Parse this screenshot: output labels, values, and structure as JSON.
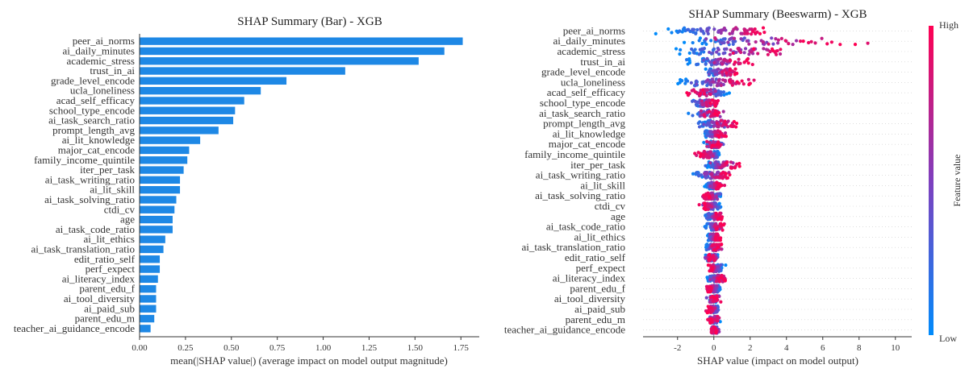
{
  "chart_data": [
    {
      "type": "bar",
      "title": "SHAP Summary (Bar) - XGB",
      "xlabel": "mean(|SHAP value|) (average impact on model output magnitude)",
      "ylabel": "",
      "xlim": [
        0,
        1.85
      ],
      "xticks": [
        0.0,
        0.25,
        0.5,
        0.75,
        1.0,
        1.25,
        1.5,
        1.75
      ],
      "xtick_labels": [
        "0.00",
        "0.25",
        "0.50",
        "0.75",
        "1.00",
        "1.25",
        "1.50",
        "1.75"
      ],
      "bar_color": "#1e88e5",
      "categories": [
        "peer_ai_norms",
        "ai_daily_minutes",
        "academic_stress",
        "trust_in_ai",
        "grade_level_encode",
        "ucla_loneliness",
        "acad_self_efficacy",
        "school_type_encode",
        "ai_task_search_ratio",
        "prompt_length_avg",
        "ai_lit_knowledge",
        "major_cat_encode",
        "family_income_quintile",
        "iter_per_task",
        "ai_task_writing_ratio",
        "ai_lit_skill",
        "ai_task_solving_ratio",
        "ctdi_cv",
        "age",
        "ai_task_code_ratio",
        "ai_lit_ethics",
        "ai_task_translation_ratio",
        "edit_ratio_self",
        "perf_expect",
        "ai_literacy_index",
        "parent_edu_f",
        "ai_tool_diversity",
        "ai_paid_sub",
        "parent_edu_m",
        "teacher_ai_guidance_encode"
      ],
      "values": [
        1.76,
        1.66,
        1.52,
        1.12,
        0.8,
        0.66,
        0.57,
        0.52,
        0.51,
        0.43,
        0.33,
        0.27,
        0.26,
        0.24,
        0.22,
        0.22,
        0.2,
        0.19,
        0.18,
        0.18,
        0.14,
        0.13,
        0.11,
        0.11,
        0.1,
        0.09,
        0.09,
        0.09,
        0.08,
        0.06
      ]
    },
    {
      "type": "scatter",
      "title": "SHAP Summary (Beeswarm) - XGB",
      "xlabel": "SHAP value (impact on model output)",
      "ylabel": "",
      "xlim": [
        -3.9,
        10.9
      ],
      "xticks": [
        -2,
        0,
        2,
        4,
        6,
        8,
        10
      ],
      "xtick_labels": [
        "-2",
        "0",
        "2",
        "4",
        "6",
        "8",
        "10"
      ],
      "colorbar": {
        "label": "Feature value",
        "high_label": "High",
        "low_label": "Low",
        "high_color": "#ff0052",
        "low_color": "#008bfb"
      },
      "features": [
        {
          "name": "peer_ai_norms",
          "low_range": [
            -3.2,
            -1.6
          ],
          "high_range": [
            2.2,
            3.4
          ],
          "spread": 0.1
        },
        {
          "name": "ai_daily_minutes",
          "low_range": [
            -1.8,
            -0.5
          ],
          "high_range": [
            0.5,
            10.2
          ],
          "spread": 0.32
        },
        {
          "name": "academic_stress",
          "low_range": [
            -2.9,
            -0.6
          ],
          "high_range": [
            1.0,
            5.6
          ],
          "spread": 0.14
        },
        {
          "name": "trust_in_ai",
          "low_range": [
            -1.9,
            -0.3
          ],
          "high_range": [
            0.5,
            2.6
          ],
          "spread": 0.14
        },
        {
          "name": "grade_level_encode",
          "low_range": [
            -0.9,
            0.2
          ],
          "high_range": [
            0.5,
            1.6
          ],
          "spread": 0.2
        },
        {
          "name": "ucla_loneliness",
          "low_range": [
            -2.5,
            -0.6
          ],
          "high_range": [
            0.8,
            2.7
          ],
          "spread": 0.14
        },
        {
          "name": "acad_self_efficacy",
          "low_range": [
            0.0,
            1.0
          ],
          "high_range": [
            -2.0,
            -0.2
          ],
          "spread": 0.18
        },
        {
          "name": "school_type_encode",
          "low_range": [
            -1.5,
            -0.2
          ],
          "high_range": [
            -0.5,
            0.4
          ],
          "spread": 0.25
        },
        {
          "name": "ai_task_search_ratio",
          "low_range": [
            -1.5,
            0.6
          ],
          "high_range": [
            -1.0,
            0.8
          ],
          "spread": 0.25
        },
        {
          "name": "prompt_length_avg",
          "low_range": [
            -1.2,
            0.0
          ],
          "high_range": [
            0.2,
            1.6
          ],
          "spread": 0.2
        },
        {
          "name": "ai_lit_knowledge",
          "low_range": [
            -0.7,
            0.0
          ],
          "high_range": [
            0.0,
            0.9
          ],
          "spread": 0.2
        },
        {
          "name": "major_cat_encode",
          "low_range": [
            -0.7,
            0.7
          ],
          "high_range": [
            -0.5,
            0.6
          ],
          "spread": 0.25
        },
        {
          "name": "family_income_quintile",
          "low_range": [
            0.0,
            0.4
          ],
          "high_range": [
            -1.2,
            0.0
          ],
          "spread": 0.2
        },
        {
          "name": "iter_per_task",
          "low_range": [
            -0.6,
            0.0
          ],
          "high_range": [
            0.0,
            2.0
          ],
          "spread": 0.2
        },
        {
          "name": "ai_task_writing_ratio",
          "low_range": [
            -1.6,
            0.0
          ],
          "high_range": [
            0.0,
            1.2
          ],
          "spread": 0.2
        },
        {
          "name": "ai_lit_skill",
          "low_range": [
            -0.6,
            0.0
          ],
          "high_range": [
            0.0,
            0.7
          ],
          "spread": 0.2
        },
        {
          "name": "ai_task_solving_ratio",
          "low_range": [
            0.0,
            0.6
          ],
          "high_range": [
            -0.9,
            0.0
          ],
          "spread": 0.2
        },
        {
          "name": "ctdi_cv",
          "low_range": [
            -0.3,
            0.5
          ],
          "high_range": [
            -0.9,
            0.0
          ],
          "spread": 0.2
        },
        {
          "name": "age",
          "low_range": [
            -0.6,
            0.0
          ],
          "high_range": [
            0.0,
            0.6
          ],
          "spread": 0.2
        },
        {
          "name": "ai_task_code_ratio",
          "low_range": [
            -0.6,
            0.0
          ],
          "high_range": [
            0.0,
            0.7
          ],
          "spread": 0.2
        },
        {
          "name": "ai_lit_ethics",
          "low_range": [
            -0.5,
            0.0
          ],
          "high_range": [
            0.0,
            0.5
          ],
          "spread": 0.2
        },
        {
          "name": "ai_task_translation_ratio",
          "low_range": [
            -0.7,
            0.2
          ],
          "high_range": [
            -0.3,
            0.8
          ],
          "spread": 0.2
        },
        {
          "name": "edit_ratio_self",
          "low_range": [
            -0.5,
            0.3
          ],
          "high_range": [
            -0.5,
            0.3
          ],
          "spread": 0.2
        },
        {
          "name": "perf_expect",
          "low_range": [
            0.0,
            0.7
          ],
          "high_range": [
            -0.4,
            0.0
          ],
          "spread": 0.2
        },
        {
          "name": "ai_literacy_index",
          "low_range": [
            -0.5,
            0.0
          ],
          "high_range": [
            0.0,
            1.0
          ],
          "spread": 0.2
        },
        {
          "name": "parent_edu_f",
          "low_range": [
            0.0,
            0.5
          ],
          "high_range": [
            -0.6,
            0.0
          ],
          "spread": 0.2
        },
        {
          "name": "ai_tool_diversity",
          "low_range": [
            -0.4,
            0.3
          ],
          "high_range": [
            -0.4,
            0.4
          ],
          "spread": 0.2
        },
        {
          "name": "ai_paid_sub",
          "low_range": [
            0.0,
            0.4
          ],
          "high_range": [
            -0.5,
            0.0
          ],
          "spread": 0.2
        },
        {
          "name": "parent_edu_m",
          "low_range": [
            -0.4,
            0.4
          ],
          "high_range": [
            -0.4,
            0.4
          ],
          "spread": 0.2
        },
        {
          "name": "teacher_ai_guidance_encode",
          "low_range": [
            -0.2,
            0.4
          ],
          "high_range": [
            -0.3,
            0.3
          ],
          "spread": 0.2
        }
      ]
    }
  ]
}
